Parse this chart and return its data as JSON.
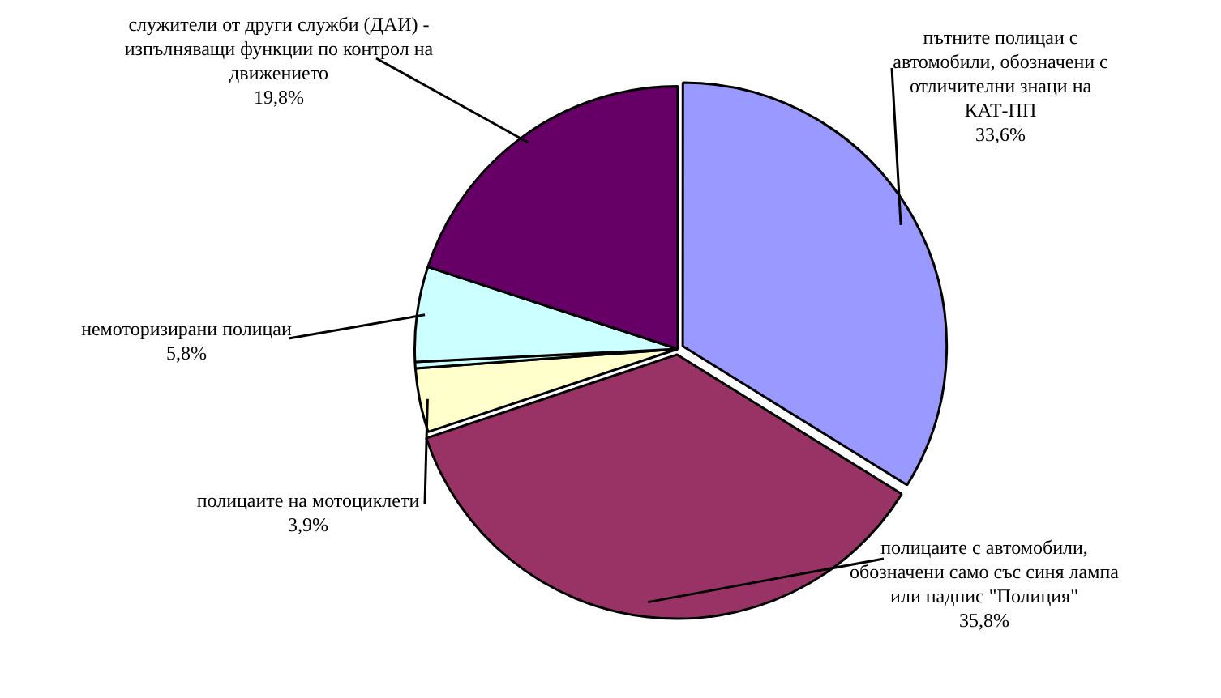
{
  "chart_data": {
    "type": "pie",
    "categories": [
      "пътните полицаи с автомобили, обозначени с отличителни знаци на КАТ-ПП",
      "полицаите с автомобили, обозначени само със синя лампа или надпис \"Полиция\"",
      "полицаите на мотоциклети",
      null,
      "немоторизирани полицаи",
      "служители от други служби (ДАИ) - изпълняващи функции по контрол на движението"
    ],
    "values": [
      33.6,
      35.8,
      3.9,
      0.4,
      5.8,
      19.8
    ],
    "value_labels": [
      "33,6%",
      "35,8%",
      "3,9%",
      null,
      "5,8%",
      "19,8%"
    ],
    "colors": [
      "#9999ff",
      "#993366",
      "#ffffcc",
      "#ccffff",
      "#ccffff",
      "#660066"
    ],
    "legend": false
  }
}
